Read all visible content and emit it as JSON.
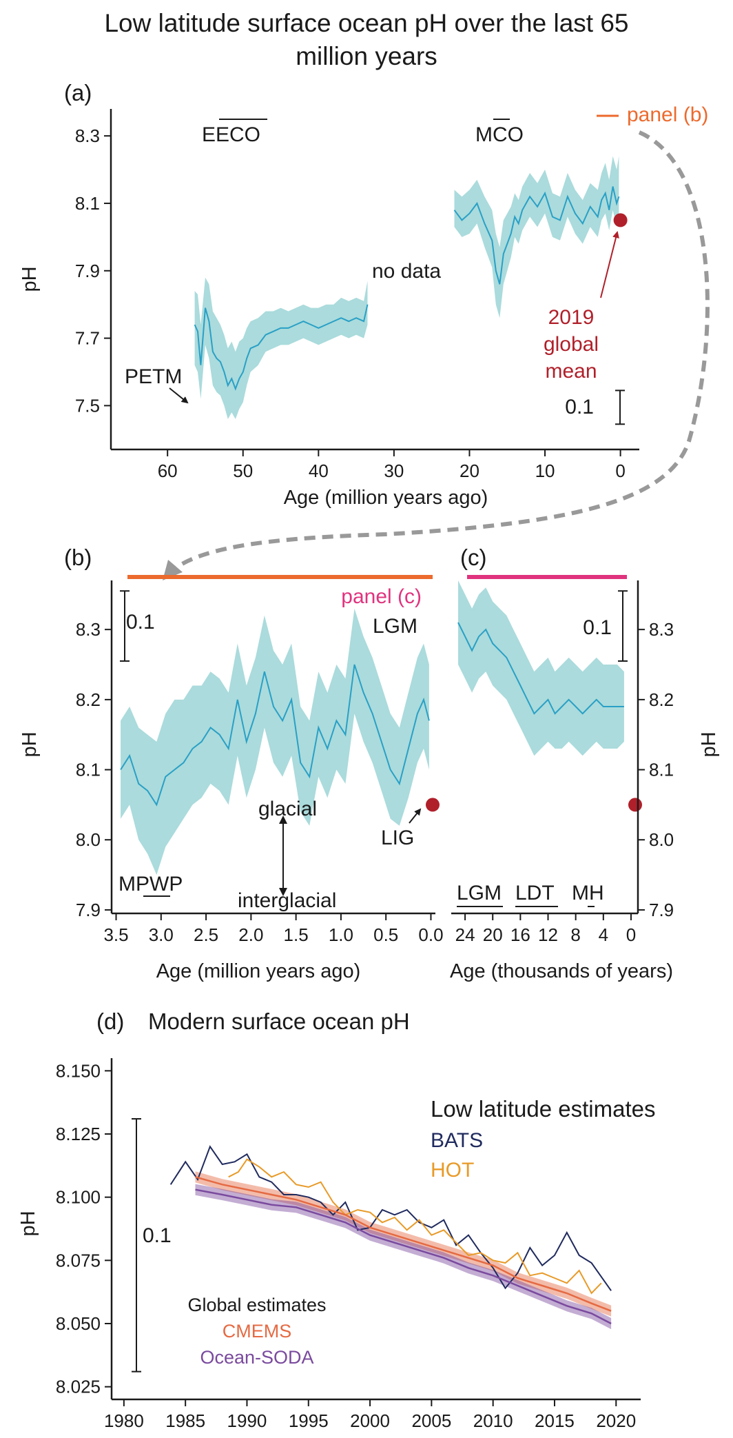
{
  "title_line1": "Low latitude surface ocean pH over the last 65",
  "title_line2": "million years",
  "colors": {
    "ph": "#29a0c6",
    "band": "#8fcfd0",
    "mean_dot": "#b0202a",
    "panel_b": "#ec6a2d",
    "panel_c": "#e0337e",
    "arrow": "#999999",
    "bats": "#1f2a5e",
    "hot": "#e89a27",
    "cmems": "#e56a43",
    "soda": "#7a4a9e"
  },
  "chart_data": [
    {
      "panel": "(a)",
      "type": "line",
      "ylabel": "pH",
      "xlabel": "Age (million years ago)",
      "xlim": [
        67.5,
        -2.5
      ],
      "ylim": [
        7.37,
        8.38
      ],
      "x_ticks": [
        60,
        50,
        40,
        30,
        20,
        10,
        0
      ],
      "y_ticks": [
        7.5,
        7.7,
        7.9,
        8.1,
        8.3
      ],
      "y_tick_labels": [
        "7.5",
        "7.7",
        "7.9",
        "8.1",
        "8.3"
      ],
      "segments": [
        {
          "x": [
            56.4,
            56.0,
            55.6,
            55.0,
            54.5,
            54.0,
            53.5,
            53.0,
            52.5,
            52.0,
            51.5,
            51.0,
            50.5,
            50.0,
            49.5,
            49.0,
            48.0,
            47.0,
            46.0,
            45.0,
            44.0,
            43.0,
            42.0,
            41.0,
            40.0,
            39.0,
            38.0,
            37.0,
            36.0,
            35.0,
            34.0,
            33.5
          ],
          "y": [
            7.74,
            7.72,
            7.62,
            7.79,
            7.75,
            7.66,
            7.64,
            7.63,
            7.6,
            7.56,
            7.58,
            7.55,
            7.58,
            7.6,
            7.64,
            7.67,
            7.68,
            7.71,
            7.72,
            7.73,
            7.73,
            7.74,
            7.75,
            7.74,
            7.73,
            7.74,
            7.75,
            7.76,
            7.75,
            7.76,
            7.75,
            7.8
          ],
          "lo": [
            7.62,
            7.6,
            7.52,
            7.68,
            7.64,
            7.56,
            7.54,
            7.53,
            7.5,
            7.46,
            7.48,
            7.46,
            7.49,
            7.51,
            7.56,
            7.6,
            7.62,
            7.66,
            7.67,
            7.68,
            7.68,
            7.69,
            7.7,
            7.69,
            7.68,
            7.69,
            7.7,
            7.71,
            7.7,
            7.71,
            7.7,
            7.74
          ],
          "hi": [
            7.84,
            7.83,
            7.74,
            7.88,
            7.86,
            7.78,
            7.76,
            7.74,
            7.71,
            7.67,
            7.69,
            7.66,
            7.69,
            7.7,
            7.73,
            7.75,
            7.76,
            7.78,
            7.78,
            7.79,
            7.78,
            7.79,
            7.8,
            7.79,
            7.79,
            7.8,
            7.8,
            7.82,
            7.81,
            7.82,
            7.81,
            7.87
          ]
        },
        {
          "x": [
            22.0,
            21.0,
            20.0,
            19.0,
            18.0,
            17.0,
            16.5,
            16.0,
            15.5,
            15.0,
            14.5,
            14.0,
            13.5,
            13.0,
            12.0,
            11.0,
            10.0,
            9.0,
            8.0,
            7.0,
            6.0,
            5.0,
            4.0,
            3.0,
            2.5,
            2.0,
            1.5,
            1.0,
            0.5,
            0.2
          ],
          "y": [
            8.08,
            8.05,
            8.07,
            8.1,
            8.04,
            7.99,
            7.9,
            7.86,
            7.95,
            7.98,
            8.01,
            8.06,
            8.04,
            8.08,
            8.12,
            8.09,
            8.13,
            8.06,
            8.05,
            8.12,
            8.07,
            8.04,
            8.09,
            8.06,
            8.11,
            8.13,
            8.08,
            8.15,
            8.1,
            8.12
          ],
          "lo": [
            8.03,
            8.0,
            8.01,
            8.04,
            7.97,
            7.91,
            7.8,
            7.76,
            7.86,
            7.9,
            7.94,
            8.0,
            7.98,
            8.02,
            8.06,
            8.03,
            8.07,
            8.0,
            7.99,
            8.06,
            8.01,
            7.98,
            8.03,
            8.0,
            8.05,
            8.07,
            8.02,
            8.08,
            8.03,
            8.05
          ],
          "hi": [
            8.14,
            8.12,
            8.14,
            8.17,
            8.12,
            8.08,
            8.01,
            7.97,
            8.05,
            8.07,
            8.09,
            8.13,
            8.11,
            8.15,
            8.19,
            8.16,
            8.2,
            8.13,
            8.12,
            8.19,
            8.14,
            8.11,
            8.16,
            8.14,
            8.19,
            8.22,
            8.17,
            8.24,
            8.2,
            8.24
          ]
        }
      ],
      "markers": [
        {
          "x": 0,
          "y": 8.05,
          "label_lines": [
            "2019",
            "global",
            "mean"
          ]
        }
      ],
      "annotations": [
        "EECO",
        "MCO",
        "no data",
        "PETM"
      ],
      "scale_bar_label": "0.1",
      "inset_label": "panel (b)"
    },
    {
      "panel": "(b)",
      "type": "line",
      "ylabel": "pH",
      "xlabel": "Age (million years ago)",
      "xlim": [
        3.55,
        -0.05
      ],
      "ylim": [
        7.895,
        8.37
      ],
      "x_ticks": [
        3.5,
        3.0,
        2.5,
        2.0,
        1.5,
        1.0,
        0.5,
        0.0
      ],
      "x_tick_labels": [
        "3.5",
        "3.0",
        "2.5",
        "2.0",
        "1.5",
        "1.0",
        "0.5",
        "0.0"
      ],
      "y_ticks": [
        7.9,
        8.0,
        8.1,
        8.2,
        8.3
      ],
      "y_tick_labels": [
        "7.9",
        "8.0",
        "8.1",
        "8.2",
        "8.3"
      ],
      "x": [
        3.45,
        3.35,
        3.25,
        3.15,
        3.05,
        2.95,
        2.85,
        2.75,
        2.65,
        2.55,
        2.45,
        2.35,
        2.25,
        2.15,
        2.05,
        1.95,
        1.85,
        1.75,
        1.65,
        1.55,
        1.45,
        1.35,
        1.25,
        1.15,
        1.05,
        0.95,
        0.85,
        0.75,
        0.65,
        0.55,
        0.45,
        0.35,
        0.25,
        0.15,
        0.08,
        0.02
      ],
      "y": [
        8.1,
        8.12,
        8.08,
        8.07,
        8.05,
        8.09,
        8.1,
        8.11,
        8.13,
        8.14,
        8.16,
        8.15,
        8.13,
        8.2,
        8.14,
        8.18,
        8.24,
        8.19,
        8.17,
        8.2,
        8.11,
        8.09,
        8.16,
        8.13,
        8.17,
        8.15,
        8.25,
        8.21,
        8.18,
        8.14,
        8.1,
        8.08,
        8.13,
        8.18,
        8.2,
        8.17
      ],
      "lo": [
        8.03,
        8.05,
        8.0,
        7.98,
        7.95,
        7.99,
        8.01,
        8.03,
        8.05,
        8.06,
        8.08,
        8.07,
        8.05,
        8.12,
        8.06,
        8.1,
        8.16,
        8.11,
        8.09,
        8.12,
        8.04,
        8.02,
        8.09,
        8.06,
        8.1,
        8.08,
        8.18,
        8.14,
        8.11,
        8.07,
        8.03,
        8.02,
        8.06,
        8.11,
        8.13,
        8.1
      ],
      "hi": [
        8.17,
        8.19,
        8.16,
        8.15,
        8.14,
        8.18,
        8.2,
        8.2,
        8.22,
        8.22,
        8.24,
        8.23,
        8.21,
        8.28,
        8.22,
        8.26,
        8.32,
        8.27,
        8.25,
        8.28,
        8.19,
        8.17,
        8.24,
        8.21,
        8.25,
        8.23,
        8.33,
        8.29,
        8.26,
        8.22,
        8.18,
        8.16,
        8.21,
        8.26,
        8.28,
        8.25
      ],
      "markers": [
        {
          "x": 0.0,
          "y": 8.05
        }
      ],
      "annotations": [
        "LGM",
        "LIG",
        "glacial",
        "interglacial",
        "MPWP"
      ],
      "scale_bar_label": "0.1",
      "inset_label": "panel (c)"
    },
    {
      "panel": "(c)",
      "type": "line",
      "ylabel": "pH",
      "xlabel": "Age (thousands of years)",
      "xlim": [
        26,
        -1.0
      ],
      "ylim": [
        7.895,
        8.37
      ],
      "x_ticks": [
        24,
        20,
        16,
        12,
        8,
        4,
        0
      ],
      "y_ticks": [
        7.9,
        8.0,
        8.1,
        8.2,
        8.3
      ],
      "y_tick_labels": [
        "7.9",
        "8.0",
        "8.1",
        "8.2",
        "8.3"
      ],
      "x": [
        25,
        24,
        23,
        22,
        21,
        20,
        19,
        18,
        17,
        16,
        15,
        14,
        13,
        12,
        11,
        10,
        9,
        8,
        7,
        6,
        5,
        4,
        3,
        2,
        1
      ],
      "y": [
        8.31,
        8.29,
        8.27,
        8.29,
        8.3,
        8.28,
        8.27,
        8.26,
        8.24,
        8.22,
        8.2,
        8.18,
        8.19,
        8.2,
        8.18,
        8.19,
        8.2,
        8.19,
        8.18,
        8.19,
        8.2,
        8.19,
        8.19,
        8.19,
        8.19
      ],
      "lo": [
        8.25,
        8.23,
        8.21,
        8.23,
        8.24,
        8.22,
        8.21,
        8.2,
        8.18,
        8.16,
        8.14,
        8.12,
        8.13,
        8.14,
        8.13,
        8.13,
        8.14,
        8.13,
        8.12,
        8.13,
        8.14,
        8.13,
        8.13,
        8.13,
        8.14
      ],
      "hi": [
        8.37,
        8.35,
        8.33,
        8.35,
        8.36,
        8.34,
        8.33,
        8.32,
        8.3,
        8.28,
        8.26,
        8.24,
        8.25,
        8.26,
        8.24,
        8.25,
        8.26,
        8.25,
        8.24,
        8.25,
        8.26,
        8.25,
        8.25,
        8.25,
        8.24
      ],
      "markers": [
        {
          "x": 0,
          "y": 8.05
        }
      ],
      "annotations": [
        "LGM",
        "LDT",
        "MH"
      ],
      "scale_bar_label": "0.1"
    },
    {
      "panel": "(d)",
      "type": "line",
      "title": "Modern surface ocean pH",
      "ylabel": "pH",
      "xlabel": "",
      "xlim": [
        1979,
        2022
      ],
      "ylim": [
        8.02,
        8.155
      ],
      "x_ticks": [
        1980,
        1985,
        1990,
        1995,
        2000,
        2005,
        2010,
        2015,
        2020
      ],
      "y_ticks": [
        8.025,
        8.05,
        8.075,
        8.1,
        8.125,
        8.15
      ],
      "y_tick_labels": [
        "8.025",
        "8.050",
        "8.075",
        "8.100",
        "8.125",
        "8.150"
      ],
      "legend_groups": [
        {
          "heading": "Low latitude estimates",
          "entries": [
            "BATS",
            "HOT"
          ]
        },
        {
          "heading": "Global estimates",
          "entries": [
            "CMEMS",
            "Ocean-SODA"
          ]
        }
      ],
      "series": [
        {
          "name": "BATS",
          "x": [
            1983.8,
            1985,
            1986,
            1987,
            1988,
            1989,
            1990,
            1991,
            1992,
            1993,
            1994,
            1995,
            1996,
            1997,
            1998,
            1999,
            2000,
            2001,
            2002,
            2003,
            2004,
            2005,
            2006,
            2007,
            2008,
            2009,
            2010,
            2011,
            2012,
            2013,
            2014,
            2015,
            2016,
            2017,
            2018,
            2019.6
          ],
          "y": [
            8.105,
            8.114,
            8.107,
            8.12,
            8.113,
            8.114,
            8.117,
            8.108,
            8.106,
            8.101,
            8.101,
            8.1,
            8.098,
            8.093,
            8.098,
            8.087,
            8.088,
            8.095,
            8.093,
            8.095,
            8.09,
            8.088,
            8.091,
            8.081,
            8.085,
            8.078,
            8.072,
            8.064,
            8.07,
            8.08,
            8.073,
            8.077,
            8.086,
            8.077,
            8.074,
            8.063
          ]
        },
        {
          "name": "HOT",
          "x": [
            1988.5,
            1989.3,
            1990,
            1991,
            1992,
            1993,
            1994,
            1995,
            1996,
            1997,
            1998,
            1999,
            2000,
            2001,
            2002,
            2003,
            2004,
            2005,
            2006,
            2007,
            2008,
            2009,
            2010,
            2011,
            2012,
            2013,
            2014,
            2015,
            2016,
            2017,
            2018,
            2018.8
          ],
          "y": [
            8.108,
            8.11,
            8.115,
            8.112,
            8.108,
            8.11,
            8.105,
            8.104,
            8.106,
            8.098,
            8.093,
            8.095,
            8.094,
            8.09,
            8.092,
            8.087,
            8.091,
            8.085,
            8.087,
            8.082,
            8.077,
            8.078,
            8.075,
            8.074,
            8.078,
            8.069,
            8.07,
            8.068,
            8.066,
            8.071,
            8.062,
            8.066
          ]
        },
        {
          "name": "CMEMS",
          "x": [
            1985.8,
            1988,
            1990,
            1992,
            1994,
            1996,
            1998,
            2000,
            2002,
            2004,
            2006,
            2008,
            2010,
            2012,
            2014,
            2016,
            2018,
            2019.6
          ],
          "y": [
            8.108,
            8.105,
            8.103,
            8.101,
            8.099,
            8.096,
            8.093,
            8.088,
            8.085,
            8.082,
            8.079,
            8.076,
            8.073,
            8.068,
            8.065,
            8.062,
            8.058,
            8.055
          ],
          "band": 0.0022
        },
        {
          "name": "Ocean-SODA",
          "x": [
            1985.8,
            1988,
            1990,
            1992,
            1994,
            1996,
            1998,
            2000,
            2002,
            2004,
            2006,
            2008,
            2010,
            2012,
            2014,
            2016,
            2018,
            2019.6
          ],
          "y": [
            8.103,
            8.101,
            8.099,
            8.097,
            8.096,
            8.093,
            8.09,
            8.085,
            8.082,
            8.079,
            8.076,
            8.072,
            8.069,
            8.065,
            8.061,
            8.057,
            8.054,
            8.05
          ],
          "band": 0.0022
        }
      ],
      "scale_bar_label": "0.1"
    }
  ]
}
